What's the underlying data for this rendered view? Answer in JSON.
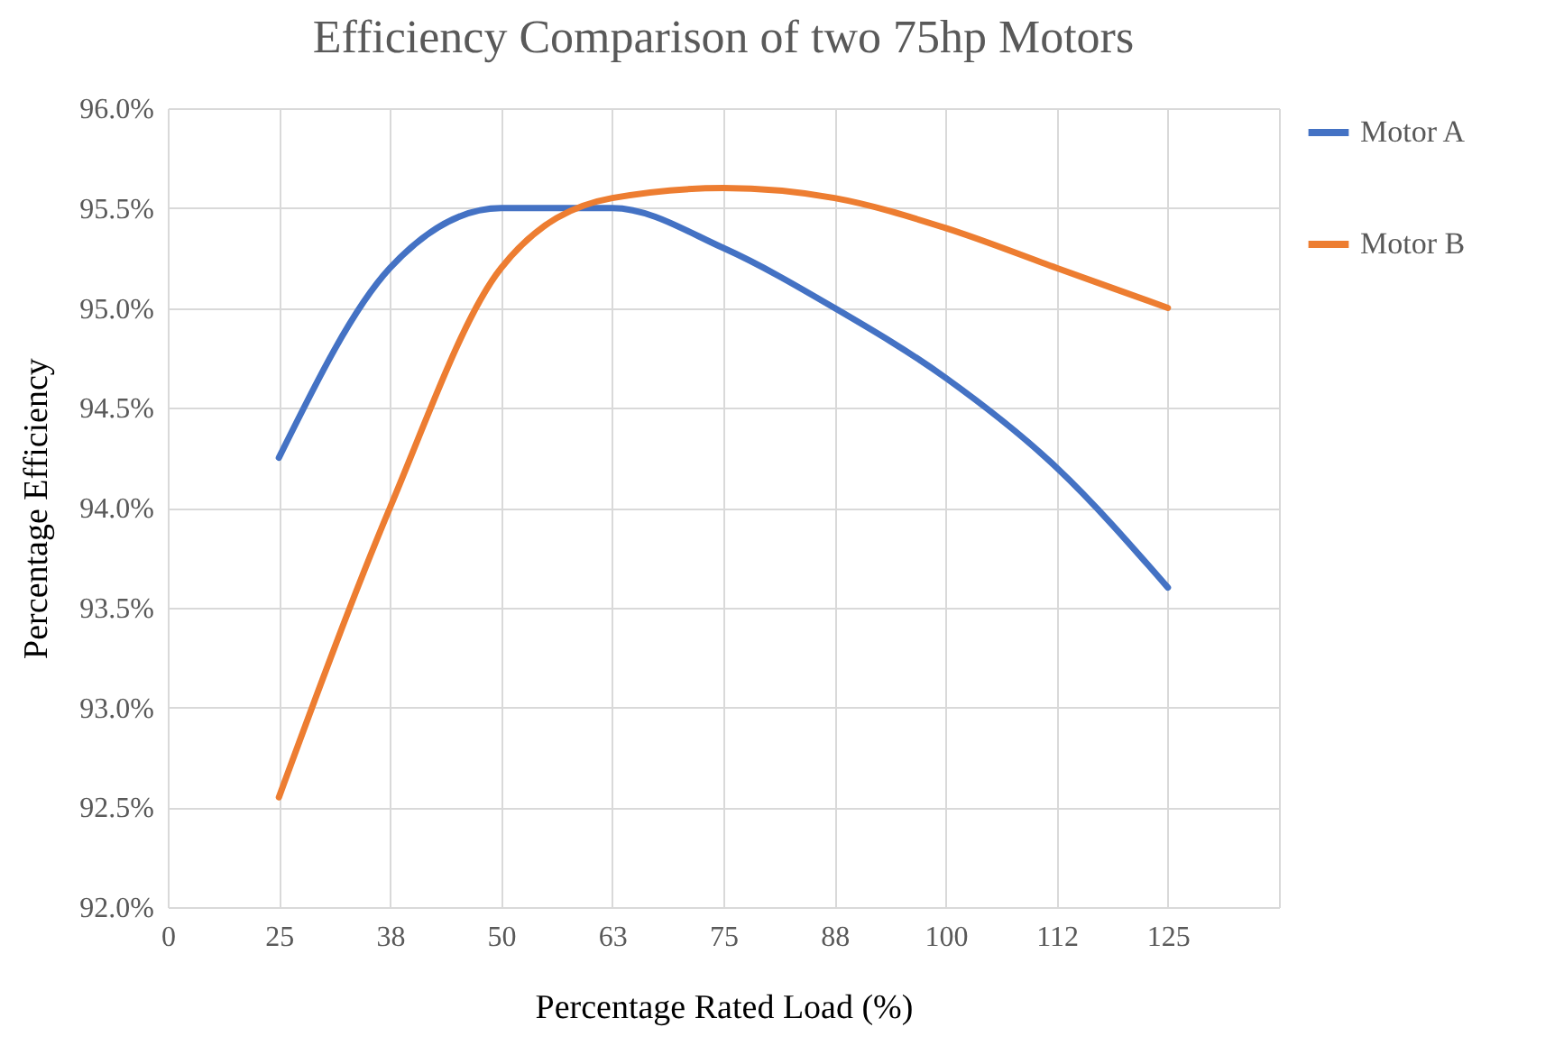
{
  "chart_data": {
    "type": "line",
    "title": "Efficiency Comparison of two 75hp Motors",
    "xlabel": "Percentage Rated Load (%)",
    "ylabel": "Percentage Efficiency",
    "categories": [
      "0",
      "25",
      "38",
      "50",
      "63",
      "75",
      "88",
      "100",
      "112",
      "125",
      null
    ],
    "series": [
      {
        "name": "Motor A",
        "color": "#4472c4",
        "values": [
          null,
          94.25,
          95.2,
          95.5,
          95.5,
          95.3,
          95.0,
          94.65,
          94.2,
          93.6,
          null
        ]
      },
      {
        "name": "Motor B",
        "color": "#ed7d31",
        "values": [
          null,
          92.55,
          94.0,
          95.2,
          95.55,
          95.6,
          95.55,
          95.4,
          95.2,
          95.0,
          null
        ]
      }
    ],
    "ylim": [
      92.0,
      96.0
    ],
    "yticks": [
      {
        "value": 92.0,
        "label": "92.0%"
      },
      {
        "value": 92.5,
        "label": "92.5%"
      },
      {
        "value": 93.0,
        "label": "93.0%"
      },
      {
        "value": 93.5,
        "label": "93.5%"
      },
      {
        "value": 94.0,
        "label": "94.0%"
      },
      {
        "value": 94.5,
        "label": "94.5%"
      },
      {
        "value": 95.0,
        "label": "95.0%"
      },
      {
        "value": 95.5,
        "label": "95.5%"
      },
      {
        "value": 96.0,
        "label": "96.0%"
      }
    ],
    "grid": true,
    "legend": "right",
    "marker": "none",
    "line_style": "solid"
  }
}
